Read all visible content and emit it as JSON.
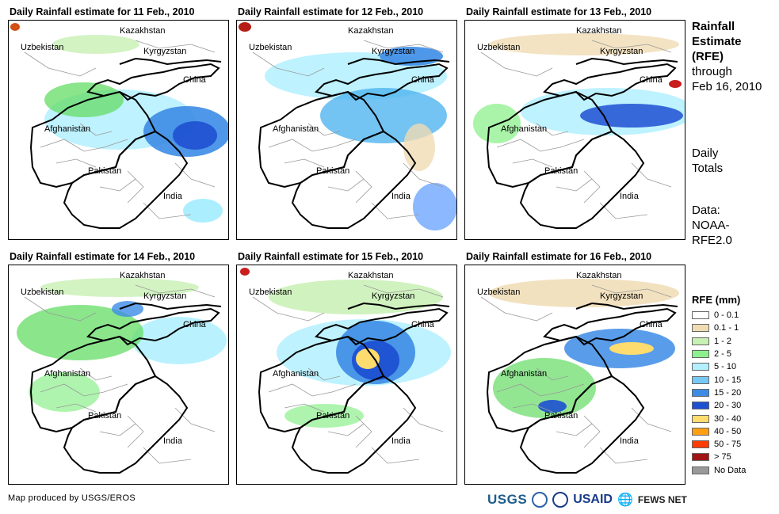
{
  "panels": [
    {
      "title": "Daily Rainfall estimate for 11 Feb., 2010",
      "precip": [
        {
          "cx": 140,
          "cy": 125,
          "rx": 95,
          "ry": 38,
          "c": "#b3f0ff",
          "o": 0.85
        },
        {
          "cx": 95,
          "cy": 100,
          "rx": 50,
          "ry": 22,
          "c": "#64dc64",
          "o": 0.75
        },
        {
          "cx": 225,
          "cy": 140,
          "rx": 55,
          "ry": 32,
          "c": "#3c8ce6",
          "o": 0.9
        },
        {
          "cx": 235,
          "cy": 145,
          "rx": 28,
          "ry": 18,
          "c": "#1e50d2",
          "o": 0.9
        },
        {
          "cx": 110,
          "cy": 30,
          "rx": 55,
          "ry": 12,
          "c": "#c8f0b4",
          "o": 0.8
        },
        {
          "cx": 245,
          "cy": 240,
          "rx": 25,
          "ry": 15,
          "c": "#96ebff",
          "o": 0.8
        },
        {
          "cx": 8,
          "cy": 8,
          "rx": 6,
          "ry": 5,
          "c": "#d25014",
          "o": 1
        }
      ]
    },
    {
      "title": "Daily Rainfall estimate for 12 Feb., 2010",
      "precip": [
        {
          "cx": 150,
          "cy": 70,
          "rx": 115,
          "ry": 30,
          "c": "#b3f0ff",
          "o": 0.85
        },
        {
          "cx": 185,
          "cy": 120,
          "rx": 80,
          "ry": 35,
          "c": "#50b4f0",
          "o": 0.8
        },
        {
          "cx": 220,
          "cy": 45,
          "rx": 40,
          "ry": 12,
          "c": "#3c8ce6",
          "o": 0.9
        },
        {
          "cx": 250,
          "cy": 235,
          "rx": 28,
          "ry": 30,
          "c": "#64a0ff",
          "o": 0.75
        },
        {
          "cx": 230,
          "cy": 160,
          "rx": 20,
          "ry": 30,
          "c": "#f0dcb4",
          "o": 0.8
        },
        {
          "cx": 10,
          "cy": 8,
          "rx": 8,
          "ry": 6,
          "c": "#b41e14",
          "o": 1
        }
      ]
    },
    {
      "title": "Daily Rainfall estimate for 13 Feb., 2010",
      "precip": [
        {
          "cx": 180,
          "cy": 115,
          "rx": 110,
          "ry": 30,
          "c": "#b3f0ff",
          "o": 0.85
        },
        {
          "cx": 210,
          "cy": 120,
          "rx": 65,
          "ry": 15,
          "c": "#1e50d2",
          "o": 0.85
        },
        {
          "cx": 40,
          "cy": 130,
          "rx": 30,
          "ry": 25,
          "c": "#8cf08c",
          "o": 0.75
        },
        {
          "cx": 150,
          "cy": 30,
          "rx": 120,
          "ry": 14,
          "c": "#f0dcb4",
          "o": 0.8
        },
        {
          "cx": 265,
          "cy": 80,
          "rx": 8,
          "ry": 5,
          "c": "#c81e1e",
          "o": 1
        }
      ]
    },
    {
      "title": "Daily Rainfall estimate for 14 Feb., 2010",
      "precip": [
        {
          "cx": 215,
          "cy": 95,
          "rx": 60,
          "ry": 30,
          "c": "#b3f0ff",
          "o": 0.9
        },
        {
          "cx": 90,
          "cy": 85,
          "rx": 80,
          "ry": 35,
          "c": "#64dc64",
          "o": 0.75
        },
        {
          "cx": 70,
          "cy": 160,
          "rx": 45,
          "ry": 25,
          "c": "#8cf08c",
          "o": 0.7
        },
        {
          "cx": 140,
          "cy": 28,
          "rx": 100,
          "ry": 12,
          "c": "#c8f0b4",
          "o": 0.8
        },
        {
          "cx": 150,
          "cy": 55,
          "rx": 20,
          "ry": 10,
          "c": "#3c8ce6",
          "o": 0.8
        }
      ]
    },
    {
      "title": "Daily Rainfall estimate for 15 Feb., 2010",
      "precip": [
        {
          "cx": 160,
          "cy": 110,
          "rx": 110,
          "ry": 42,
          "c": "#b3f0ff",
          "o": 0.85
        },
        {
          "cx": 175,
          "cy": 110,
          "rx": 50,
          "ry": 40,
          "c": "#3c8ce6",
          "o": 0.9
        },
        {
          "cx": 175,
          "cy": 120,
          "rx": 30,
          "ry": 25,
          "c": "#1e50d2",
          "o": 0.95
        },
        {
          "cx": 165,
          "cy": 118,
          "rx": 15,
          "ry": 13,
          "c": "#ffdc6e",
          "o": 1
        },
        {
          "cx": 150,
          "cy": 40,
          "rx": 110,
          "ry": 22,
          "c": "#c8f0b4",
          "o": 0.85
        },
        {
          "cx": 110,
          "cy": 190,
          "rx": 50,
          "ry": 15,
          "c": "#8cf08c",
          "o": 0.7
        },
        {
          "cx": 10,
          "cy": 8,
          "rx": 6,
          "ry": 5,
          "c": "#c81e1e",
          "o": 1
        }
      ]
    },
    {
      "title": "Daily Rainfall estimate for 16 Feb., 2010",
      "precip": [
        {
          "cx": 195,
          "cy": 105,
          "rx": 70,
          "ry": 25,
          "c": "#3c8ce6",
          "o": 0.85
        },
        {
          "cx": 210,
          "cy": 105,
          "rx": 28,
          "ry": 8,
          "c": "#ffdc6e",
          "o": 1
        },
        {
          "cx": 100,
          "cy": 155,
          "rx": 65,
          "ry": 38,
          "c": "#64dc64",
          "o": 0.7
        },
        {
          "cx": 150,
          "cy": 35,
          "rx": 120,
          "ry": 18,
          "c": "#f0dcb4",
          "o": 0.85
        },
        {
          "cx": 110,
          "cy": 178,
          "rx": 18,
          "ry": 8,
          "c": "#1e50d2",
          "o": 0.9
        }
      ]
    }
  ],
  "countries": {
    "kazakhstan": "Kazakhstan",
    "uzbekistan": "Uzbekistan",
    "kyrgyzstan": "Kyrgyzstan",
    "china": "China",
    "afghanistan": "Afghanistan",
    "pakistan": "Pakistan",
    "india": "India"
  },
  "side": {
    "title_line1": "Rainfall",
    "title_line2": "Estimate",
    "title_line3": "(RFE)",
    "through": "through",
    "date": "Feb 16, 2010",
    "daily1": "Daily",
    "daily2": "Totals",
    "data1": "Data:",
    "data2": "NOAA-",
    "data3": "RFE2.0"
  },
  "legend": {
    "title": "RFE (mm)",
    "items": [
      {
        "label": "0 - 0.1",
        "color": "#ffffff"
      },
      {
        "label": "0.1 - 1",
        "color": "#f0dcb4"
      },
      {
        "label": "1 - 2",
        "color": "#c8f0b4"
      },
      {
        "label": "2 - 5",
        "color": "#8cf08c"
      },
      {
        "label": "5 - 10",
        "color": "#b3f0ff"
      },
      {
        "label": "10 - 15",
        "color": "#78c8f5"
      },
      {
        "label": "15 - 20",
        "color": "#3c8ce6"
      },
      {
        "label": "20 - 30",
        "color": "#1e50d2"
      },
      {
        "label": "30 - 40",
        "color": "#ffdc6e"
      },
      {
        "label": "40 - 50",
        "color": "#ffa014"
      },
      {
        "label": "50 - 75",
        "color": "#ff3c00"
      },
      {
        "label": "> 75",
        "color": "#a01414"
      },
      {
        "label": "No Data",
        "color": "#999999"
      }
    ]
  },
  "credit": "Map produced by USGS/EROS",
  "logos": {
    "usgs": "USGS",
    "usaid": "USAID",
    "fews": "FEWS NET"
  }
}
